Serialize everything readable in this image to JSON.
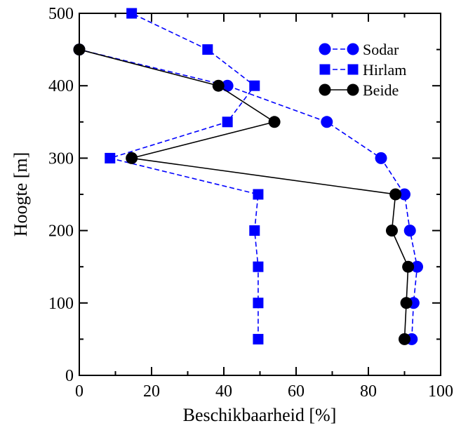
{
  "chart_data": {
    "type": "line",
    "title": "",
    "xlabel": "Beschikbaarheid [%]",
    "ylabel": "Hoogte [m]",
    "xlim": [
      0,
      100
    ],
    "ylim": [
      0,
      500
    ],
    "xticks": [
      0,
      20,
      40,
      60,
      80,
      100
    ],
    "yticks": [
      0,
      100,
      200,
      300,
      400,
      500
    ],
    "xtick_labels": [
      "0",
      "20",
      "40",
      "60",
      "80",
      "100"
    ],
    "ytick_labels": [
      "0",
      "100",
      "200",
      "300",
      "400",
      "500"
    ],
    "grid": false,
    "legend_position": "top-right",
    "series": [
      {
        "name": "Sodar",
        "color": "#0000ff",
        "marker": "circle",
        "line": "dashed",
        "points": [
          [
            92.0,
            50
          ],
          [
            92.5,
            100
          ],
          [
            93.5,
            150
          ],
          [
            91.5,
            200
          ],
          [
            90.0,
            250
          ],
          [
            83.5,
            300
          ],
          [
            68.5,
            350
          ],
          [
            41.0,
            400
          ],
          [
            0.0,
            450
          ]
        ]
      },
      {
        "name": "Hirlam",
        "color": "#0000ff",
        "marker": "square",
        "line": "dashed",
        "points": [
          [
            49.5,
            50
          ],
          [
            49.5,
            100
          ],
          [
            49.5,
            150
          ],
          [
            48.5,
            200
          ],
          [
            49.5,
            250
          ],
          [
            8.5,
            300
          ],
          [
            41.0,
            350
          ],
          [
            48.5,
            400
          ],
          [
            35.5,
            450
          ],
          [
            14.5,
            500
          ]
        ]
      },
      {
        "name": "Beide",
        "color": "#000000",
        "marker": "circle",
        "line": "solid",
        "points": [
          [
            90.0,
            50
          ],
          [
            90.5,
            100
          ],
          [
            91.0,
            150
          ],
          [
            86.5,
            200
          ],
          [
            87.5,
            250
          ],
          [
            14.5,
            300
          ],
          [
            54.0,
            350
          ],
          [
            38.5,
            400
          ],
          [
            0.0,
            450
          ]
        ]
      }
    ]
  }
}
